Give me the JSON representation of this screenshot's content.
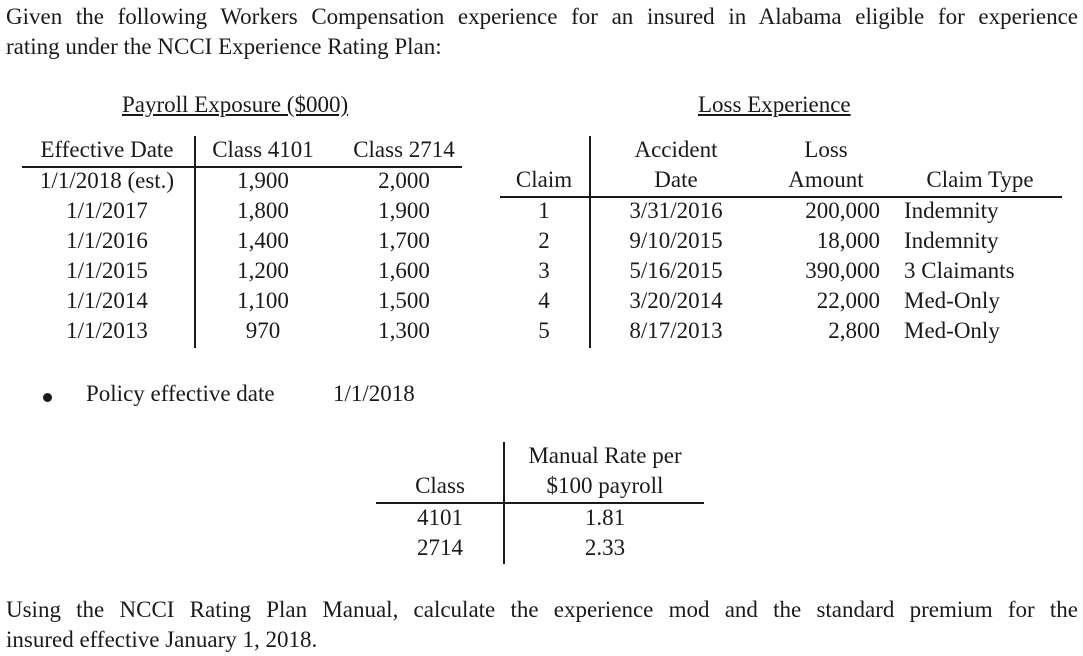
{
  "intro": {
    "line1": "Given the following Workers Compensation experience for an insured in Alabama eligible for experience",
    "line2": "rating under the NCCI Experience Rating Plan:"
  },
  "payroll": {
    "title": "Payroll Exposure ($000)",
    "headers": [
      "Effective Date",
      "Class 4101",
      "Class 2714"
    ],
    "rows": [
      {
        "date": "1/1/2018 (est.)",
        "c4101": "1,900",
        "c2714": "2,000"
      },
      {
        "date": "1/1/2017",
        "c4101": "1,800",
        "c2714": "1,900"
      },
      {
        "date": "1/1/2016",
        "c4101": "1,400",
        "c2714": "1,700"
      },
      {
        "date": "1/1/2015",
        "c4101": "1,200",
        "c2714": "1,600"
      },
      {
        "date": "1/1/2014",
        "c4101": "1,100",
        "c2714": "1,500"
      },
      {
        "date": "1/1/2013",
        "c4101": "970",
        "c2714": "1,300"
      }
    ]
  },
  "loss": {
    "title": "Loss Experience",
    "headers": {
      "claim": "Claim",
      "accident_top": "Accident",
      "accident_bottom": "Date",
      "loss_top": "Loss",
      "loss_bottom": "Amount",
      "type": "Claim Type"
    },
    "rows": [
      {
        "claim": "1",
        "date": "3/31/2016",
        "amount": "200,000",
        "type": "Indemnity"
      },
      {
        "claim": "2",
        "date": "9/10/2015",
        "amount": "18,000",
        "type": "Indemnity"
      },
      {
        "claim": "3",
        "date": "5/16/2015",
        "amount": "390,000",
        "type": "3 Claimants"
      },
      {
        "claim": "4",
        "date": "3/20/2014",
        "amount": "22,000",
        "type": "Med-Only"
      },
      {
        "claim": "5",
        "date": "8/17/2013",
        "amount": "2,800",
        "type": "Med-Only"
      }
    ]
  },
  "policy": {
    "label": "Policy effective date",
    "value": "1/1/2018"
  },
  "rates": {
    "header_class": "Class",
    "header_rate_top": "Manual Rate per",
    "header_rate_bottom": "$100 payroll",
    "rows": [
      {
        "class": "4101",
        "rate": "1.81"
      },
      {
        "class": "2714",
        "rate": "2.33"
      }
    ]
  },
  "outro": {
    "line1": "Using the NCCI Rating Plan Manual, calculate the experience mod and the standard premium for the",
    "line2": "insured effective January 1, 2018."
  }
}
